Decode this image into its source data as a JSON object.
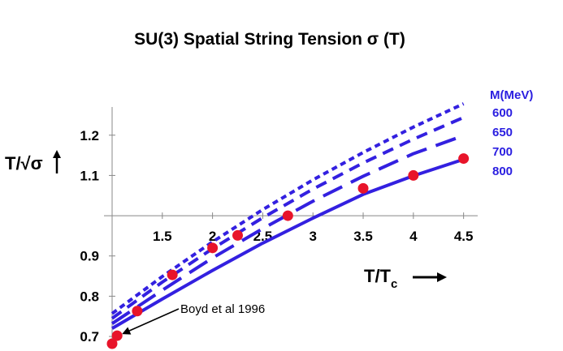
{
  "chart_data": {
    "type": "line",
    "title": "SU(3) Spatial String Tension σ (T)",
    "ylabel": "T/√σ",
    "xlabel_main": "T/T",
    "xlabel_sub": "c",
    "xlim": [
      1.0,
      4.6
    ],
    "ylim": [
      0.68,
      1.27
    ],
    "x_axis_crossing_y": 1.0,
    "x_ticks": [
      1.5,
      2,
      2.5,
      3,
      3.5,
      4,
      4.5
    ],
    "x_tick_labels": [
      "1.5",
      "2",
      "2.5",
      "3",
      "3.5",
      "4",
      "4.5"
    ],
    "y_ticks": [
      0.7,
      0.8,
      0.9,
      1.1,
      1.2
    ],
    "y_tick_labels": [
      "0.7",
      "0.8",
      "0.9",
      "1.1",
      "1.2"
    ],
    "legend_title": "M(MeV)",
    "series": [
      {
        "name": "600",
        "style": "dotted",
        "color": "#3320e0",
        "x": [
          1.0,
          1.5,
          2.0,
          2.5,
          3.0,
          3.5,
          4.0,
          4.5
        ],
        "y": [
          0.757,
          0.849,
          0.935,
          1.015,
          1.089,
          1.157,
          1.22,
          1.278
        ]
      },
      {
        "name": "650",
        "style": "short-dash",
        "color": "#3320e0",
        "x": [
          1.0,
          1.5,
          2.0,
          2.5,
          3.0,
          3.5,
          4.0,
          4.5
        ],
        "y": [
          0.745,
          0.835,
          0.918,
          0.995,
          1.066,
          1.131,
          1.19,
          1.244
        ]
      },
      {
        "name": "700",
        "style": "long-dash",
        "color": "#3320e0",
        "x": [
          1.0,
          1.5,
          2.0,
          2.5,
          3.0,
          3.5,
          4.0,
          4.5
        ],
        "y": [
          0.732,
          0.815,
          0.895,
          0.968,
          1.036,
          1.098,
          1.154,
          1.199
        ]
      },
      {
        "name": "800",
        "style": "solid",
        "color": "#3320e0",
        "x": [
          1.0,
          1.5,
          2.0,
          2.5,
          3.0,
          3.5,
          4.0,
          4.5
        ],
        "y": [
          0.72,
          0.793,
          0.864,
          0.932,
          0.994,
          1.053,
          1.099,
          1.14
        ]
      }
    ],
    "points": {
      "color": "#e8142a",
      "x": [
        1.0,
        1.05,
        1.25,
        1.6,
        2.0,
        2.25,
        2.75,
        3.5,
        4.0,
        4.5
      ],
      "y": [
        0.682,
        0.702,
        0.763,
        0.853,
        0.92,
        0.951,
        1.0,
        1.068,
        1.1,
        1.142
      ]
    },
    "annotation": {
      "text": "Boyd et al 1996",
      "arrow_to_x": 1.05,
      "arrow_to_y": 0.702
    },
    "grid": false
  }
}
